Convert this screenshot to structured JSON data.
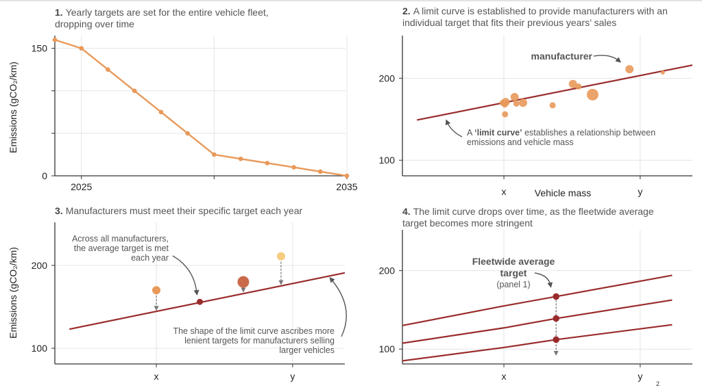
{
  "colors": {
    "series_orange": "#E8995A",
    "limit_curve": "#9A2B2B",
    "brick": "#C96B4B",
    "yellow": "#F6CC7E",
    "annotation": "#555555",
    "grid": "#e4e4e4"
  },
  "chart_data": [
    {
      "panel": 1,
      "type": "line",
      "title_num": "1.",
      "title_lines": [
        "Yearly targets are set for the entire vehicle fleet,",
        "dropping over time"
      ],
      "ylabel": "Emissions (gCO₂/km)",
      "xlabel": "",
      "x": [
        2024,
        2025,
        2026,
        2027,
        2028,
        2029,
        2030,
        2031,
        2032,
        2033,
        2034,
        2035
      ],
      "values": [
        160,
        150,
        125,
        100,
        75,
        50,
        25,
        20,
        15,
        10,
        5,
        0
      ],
      "xlim": [
        2024,
        2035
      ],
      "ylim": [
        0,
        165
      ],
      "yticks": [
        0,
        50,
        100,
        150
      ],
      "ytick_labels": [
        "0",
        "",
        "",
        "150"
      ],
      "xticks": [
        2025,
        2030,
        2035
      ],
      "xtick_labels": [
        "2025",
        "",
        "2035"
      ],
      "grid": true
    },
    {
      "panel": 2,
      "type": "scatter",
      "title_num": "2.",
      "title_lines": [
        "A limit curve is established to provide manufacturers with an",
        "individual target that fits their previous years’ sales"
      ],
      "xlabel": "Vehicle mass",
      "ylabel": "",
      "xlim": [
        0,
        100
      ],
      "ylim": [
        81,
        252
      ],
      "yticks": [
        100,
        200
      ],
      "ytick_labels": [
        "100",
        "200"
      ],
      "xticks": [
        35,
        82
      ],
      "xtick_labels": [
        "x",
        "y"
      ],
      "limit_curve": {
        "x": [
          5,
          100
        ],
        "y": [
          149,
          216
        ]
      },
      "points": [
        {
          "x": 34.6,
          "y": 170,
          "size": "s"
        },
        {
          "x": 35.3,
          "y": 168,
          "size": "s"
        },
        {
          "x": 35.6,
          "y": 171,
          "size": "m"
        },
        {
          "x": 38.7,
          "y": 177,
          "size": "m"
        },
        {
          "x": 39.3,
          "y": 169,
          "size": "s"
        },
        {
          "x": 41.6,
          "y": 170,
          "size": "m"
        },
        {
          "x": 35.4,
          "y": 156,
          "size": "s"
        },
        {
          "x": 51.8,
          "y": 167,
          "size": "s"
        },
        {
          "x": 58.8,
          "y": 193,
          "size": "m"
        },
        {
          "x": 60.7,
          "y": 190,
          "size": "s"
        },
        {
          "x": 65.6,
          "y": 180,
          "size": "l"
        },
        {
          "x": 78.3,
          "y": 211,
          "size": "m"
        },
        {
          "x": 89.8,
          "y": 207,
          "size": "xs"
        }
      ],
      "annotations": {
        "manufacturer": "manufacturer",
        "limit_curve_prefix": "A ",
        "limit_curve_bold": "‘limit curve’",
        "limit_curve_rest": " establishes a relationship between",
        "limit_curve_line2": "emissions and vehicle mass"
      },
      "grid": true
    },
    {
      "panel": 3,
      "type": "scatter",
      "title_num": "3.",
      "title_lines": [
        "Manufacturers must meet their specific target each year"
      ],
      "ylabel": "Emissions (gCO₂/km)",
      "xlabel": "",
      "xlim": [
        0,
        100
      ],
      "ylim": [
        81,
        252
      ],
      "yticks": [
        100,
        200
      ],
      "ytick_labels": [
        "100",
        "200"
      ],
      "xticks": [
        35,
        82
      ],
      "xtick_labels": [
        "x",
        "y"
      ],
      "limit_curve": {
        "x": [
          5,
          100
        ],
        "y": [
          123,
          191
        ]
      },
      "average_point": {
        "x": 50,
        "y": 156
      },
      "manufacturers": [
        {
          "x": 35,
          "y": 170,
          "target": 144,
          "color": "orange",
          "size": "m"
        },
        {
          "x": 65,
          "y": 180,
          "target": 166,
          "color": "brick",
          "size": "l"
        },
        {
          "x": 78,
          "y": 211,
          "target": 175,
          "color": "yellow",
          "size": "m"
        }
      ],
      "annotations": {
        "average_lines": [
          "Across all manufacturers,",
          "the average target is met",
          "each year"
        ],
        "shape_lines": [
          "The shape of the limit curve ascribes more",
          "lenient targets for manufacturers selling",
          "larger vehicles"
        ]
      },
      "grid": true
    },
    {
      "panel": 4,
      "type": "line",
      "title_num": "4.",
      "title_lines": [
        "The limit curve drops over time, as the fleetwide average",
        "target becomes more stringent"
      ],
      "ylabel": "",
      "xlabel": "",
      "xlim": [
        0,
        100
      ],
      "ylim": [
        81,
        252
      ],
      "yticks": [
        100,
        200
      ],
      "ytick_labels": [
        "100",
        "200"
      ],
      "xticks": [
        35,
        82
      ],
      "xtick_labels": [
        "x",
        "y"
      ],
      "series": [
        {
          "name": "curve-1",
          "x": [
            0,
            35,
            53,
            93
          ],
          "y": [
            130,
            155,
            167,
            194
          ]
        },
        {
          "name": "curve-2",
          "x": [
            0,
            35,
            53,
            93
          ],
          "y": [
            107.5,
            127,
            139,
            162.5
          ]
        },
        {
          "name": "curve-3",
          "x": [
            0,
            35,
            53,
            93
          ],
          "y": [
            85,
            102,
            112,
            131
          ]
        }
      ],
      "average_x": 53,
      "annotations": {
        "fleet_line1": "Fleetwide average",
        "fleet_line2": "target",
        "fleet_line3": "(panel 1)"
      },
      "grid": true
    }
  ],
  "artifact_text": "2"
}
